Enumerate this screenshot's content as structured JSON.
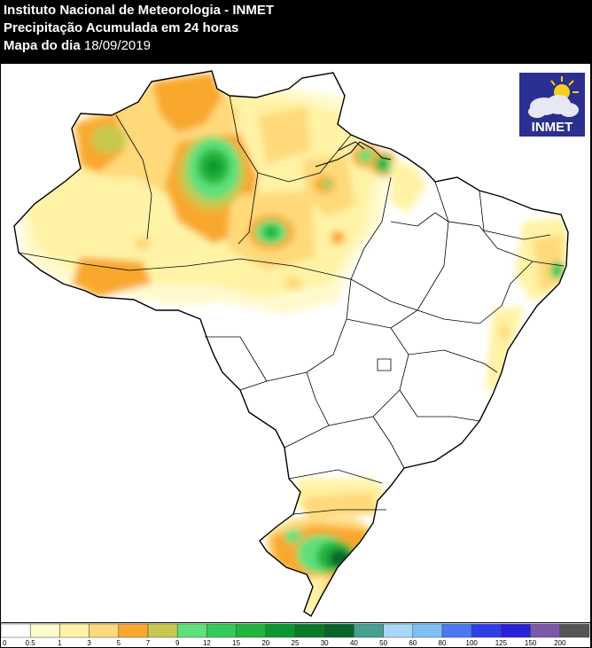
{
  "header": {
    "line1": "Instituto Nacional de Meteorologia - INMET",
    "line2": "Precipitação Acumulada em 24 horas",
    "line3_label": "Mapa do dia",
    "line3_date": "18/09/2019"
  },
  "logo": {
    "text": "INMET",
    "icon": "sun-cloud-icon"
  },
  "legend": {
    "ticks": [
      "0",
      "0.5",
      "1",
      "3",
      "5",
      "7",
      "9",
      "12",
      "15",
      "20",
      "25",
      "30",
      "40",
      "50",
      "60",
      "80",
      "100",
      "125",
      "150",
      "200"
    ],
    "colors": [
      "#ffffff",
      "#fffacd",
      "#fff3a6",
      "#ffd97a",
      "#f9a82e",
      "#c8c850",
      "#5fe07a",
      "#35c95a",
      "#22b43c",
      "#0e9632",
      "#0a7a28",
      "#07652a",
      "#45a090",
      "#a8d8f8",
      "#7ec0f5",
      "#4a78f0",
      "#2e3ee8",
      "#2a22d8",
      "#7a5aa8",
      "#555555"
    ]
  },
  "colors": {
    "light_yellow": "#fff3a6",
    "yellow": "#ffd97a",
    "orange": "#f9a82e",
    "olive": "#c8c850",
    "green": "#35c95a",
    "dark_green": "#0a7a28"
  }
}
